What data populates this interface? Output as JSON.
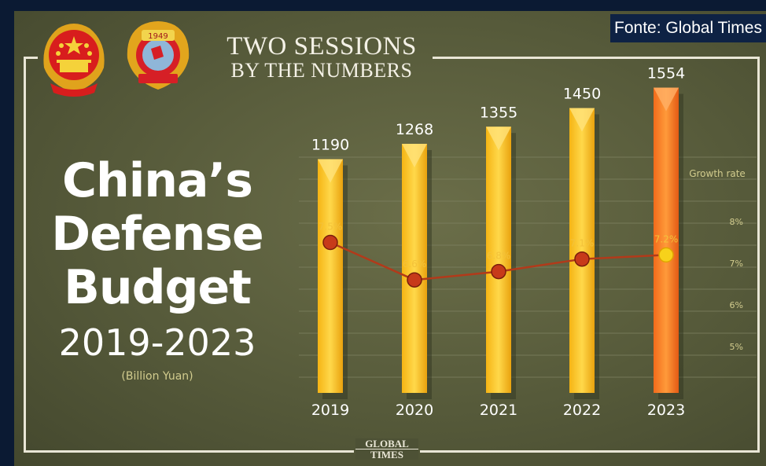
{
  "source": "Fonte: Global Times",
  "header": {
    "line1": "TWO SESSIONS",
    "line2": "BY THE NUMBERS"
  },
  "emblems": [
    {
      "name": "national-emblem-of-china",
      "lettering": ""
    },
    {
      "name": "cppcc-emblem",
      "lettering": "1949"
    }
  ],
  "title": {
    "line1": "China’s",
    "line2": "Defense",
    "line3": "Budget"
  },
  "years_range": "2019-2023",
  "unit": "(Billion Yuan)",
  "brand": {
    "line1": "GLOBAL",
    "line2": "TIMES"
  },
  "colors": {
    "bar": "#f7c21b",
    "bar_highlight": "#f47d1f",
    "line": "#b23a1a",
    "marker": "#c73a1a",
    "marker_highlight": "#f7d21b",
    "growth_label": "#f3c23a",
    "axis_text": "#d2cc8e"
  },
  "chart_data": {
    "type": "bar",
    "categories": [
      "2019",
      "2020",
      "2021",
      "2022",
      "2023"
    ],
    "values": [
      1190,
      1268,
      1355,
      1450,
      1554
    ],
    "value_labels": [
      "1190",
      "1268",
      "1355",
      "1450",
      "1554"
    ],
    "ylim": [
      0,
      1600
    ],
    "grid": true,
    "secondary": {
      "type": "line",
      "name": "Growth rate",
      "values": [
        7.5,
        6.6,
        6.8,
        7.1,
        7.2
      ],
      "value_labels": [
        "7.5%",
        "6.6%",
        "6.8%",
        "7.1%",
        "7.2%"
      ],
      "ticks": [
        "8%",
        "7%",
        "6%",
        "5%"
      ],
      "tick_values": [
        8,
        7,
        6,
        5
      ],
      "ylim_note": "right axis, percent"
    }
  }
}
